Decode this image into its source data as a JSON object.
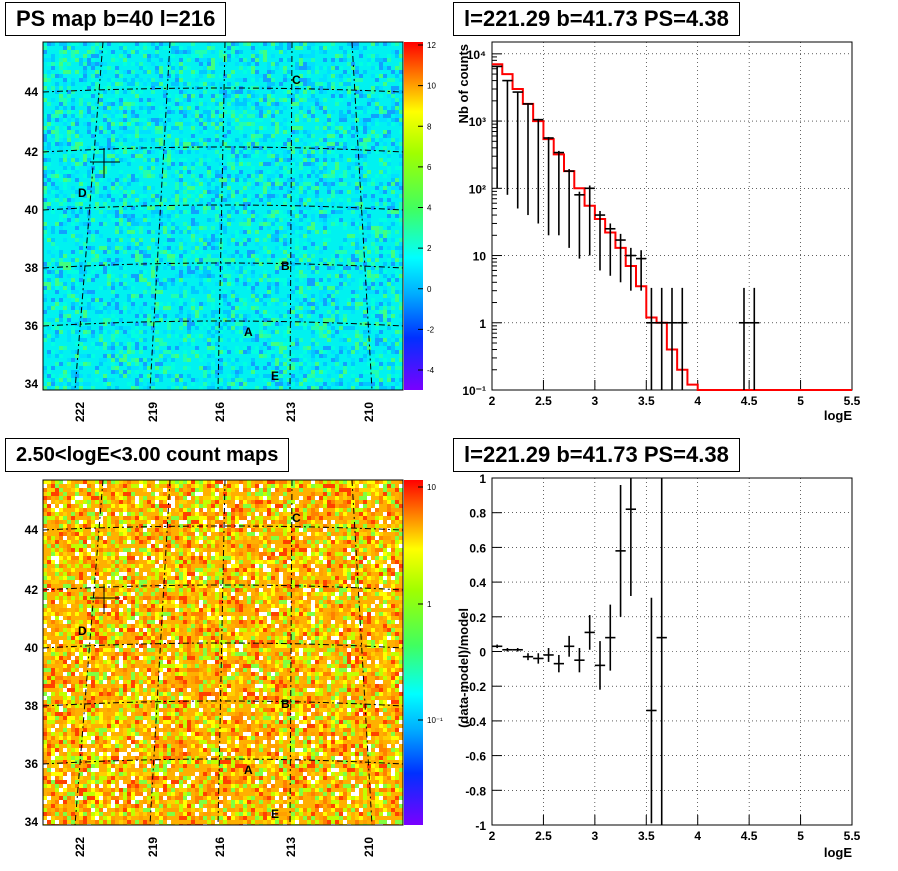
{
  "panels": {
    "tl": {
      "title": "PS map b=40 l=216"
    },
    "tr": {
      "title": "l=221.29 b=41.73 PS=4.38"
    },
    "bl": {
      "title": "2.50<logE<3.00 count maps"
    },
    "br": {
      "title": "l=221.29 b=41.73 PS=4.38"
    }
  },
  "maps": {
    "lat_ticks": [
      "44",
      "42",
      "40",
      "38",
      "36",
      "34"
    ],
    "lon_ticks": [
      "222",
      "219",
      "216",
      "213",
      "210"
    ],
    "sources": [
      "C",
      "D",
      "B",
      "A",
      "E"
    ],
    "ps_colorbar": [
      "12",
      "10",
      "8",
      "6",
      "4",
      "2",
      "0",
      "-2",
      "-4"
    ],
    "count_colorbar": [
      "10",
      "1",
      "10⁻¹"
    ]
  },
  "chart_data": [
    {
      "type": "step",
      "panel": "top-right",
      "title": "l=221.29 b=41.73 PS=4.38",
      "xlabel": "logE",
      "ylabel": "Nb of counts",
      "xlim": [
        2,
        5.5
      ],
      "ylim": [
        0.1,
        15000
      ],
      "log_y": true,
      "grid": true,
      "x_ticks": [
        "2",
        "2.5",
        "3",
        "3.5",
        "4",
        "4.5",
        "5",
        "5.5"
      ],
      "y_ticks": [
        "10⁻¹",
        "1",
        "10",
        "10²",
        "10³",
        "10⁴"
      ],
      "model": {
        "color": "#ff0000",
        "edges": [
          2.0,
          2.1,
          2.2,
          2.3,
          2.4,
          2.5,
          2.6,
          2.7,
          2.8,
          2.9,
          3.0,
          3.1,
          3.2,
          3.3,
          3.4,
          3.5,
          3.6,
          3.7,
          3.8,
          3.9,
          4.0,
          4.1,
          5.5
        ],
        "values": [
          7000,
          5000,
          3000,
          1800,
          1000,
          540,
          320,
          180,
          100,
          55,
          35,
          22,
          13,
          7,
          3.5,
          1.2,
          1.0,
          0.4,
          0.2,
          0.12,
          0.1,
          0.1
        ]
      },
      "data": {
        "color": "#000000",
        "x": [
          2.05,
          2.15,
          2.25,
          2.35,
          2.45,
          2.55,
          2.65,
          2.75,
          2.85,
          2.95,
          3.05,
          3.15,
          3.25,
          3.35,
          3.45,
          3.55,
          3.65,
          3.75,
          3.85,
          4.45,
          4.55
        ],
        "y": [
          6500,
          4000,
          2700,
          1800,
          1050,
          560,
          340,
          180,
          80,
          100,
          40,
          25,
          17,
          10,
          9,
          1,
          1,
          1,
          1,
          1,
          1
        ],
        "err_low": [
          6400,
          3920,
          2650,
          1760,
          1020,
          540,
          320,
          167,
          71,
          90,
          34,
          20,
          13,
          7,
          6,
          0.9,
          0.9,
          0.9,
          0.9,
          0.9,
          0.9
        ],
        "err_high": [
          6600,
          4060,
          2750,
          1840,
          1080,
          580,
          360,
          193,
          89,
          110,
          46,
          30,
          21,
          13,
          12,
          3.3,
          3.3,
          3.3,
          3.3,
          3.3,
          3.3
        ]
      }
    },
    {
      "type": "scatter",
      "panel": "bottom-right",
      "title": "l=221.29 b=41.73 PS=4.38",
      "xlabel": "logE",
      "ylabel": "(data-model)/model",
      "xlim": [
        2,
        5.5
      ],
      "ylim": [
        -1,
        1
      ],
      "grid": true,
      "x_ticks": [
        "2",
        "2.5",
        "3",
        "3.5",
        "4",
        "4.5",
        "5",
        "5.5"
      ],
      "y_ticks": [
        "-1",
        "-0.8",
        "-0.6",
        "-0.4",
        "-0.2",
        "0",
        "0.2",
        "0.4",
        "0.6",
        "0.8",
        "1"
      ],
      "x": [
        2.05,
        2.15,
        2.25,
        2.35,
        2.45,
        2.55,
        2.65,
        2.75,
        2.85,
        2.95,
        3.05,
        3.15,
        3.25,
        3.35,
        3.55,
        3.65
      ],
      "y": [
        0.03,
        0.01,
        0.01,
        -0.03,
        -0.04,
        -0.02,
        -0.07,
        0.03,
        -0.05,
        0.11,
        -0.08,
        0.08,
        0.58,
        0.82,
        -0.34,
        0.08
      ],
      "err": [
        0.01,
        0.01,
        0.01,
        0.02,
        0.03,
        0.04,
        0.05,
        0.06,
        0.07,
        0.1,
        0.14,
        0.19,
        0.38,
        0.5,
        0.65,
        1.3
      ]
    }
  ]
}
